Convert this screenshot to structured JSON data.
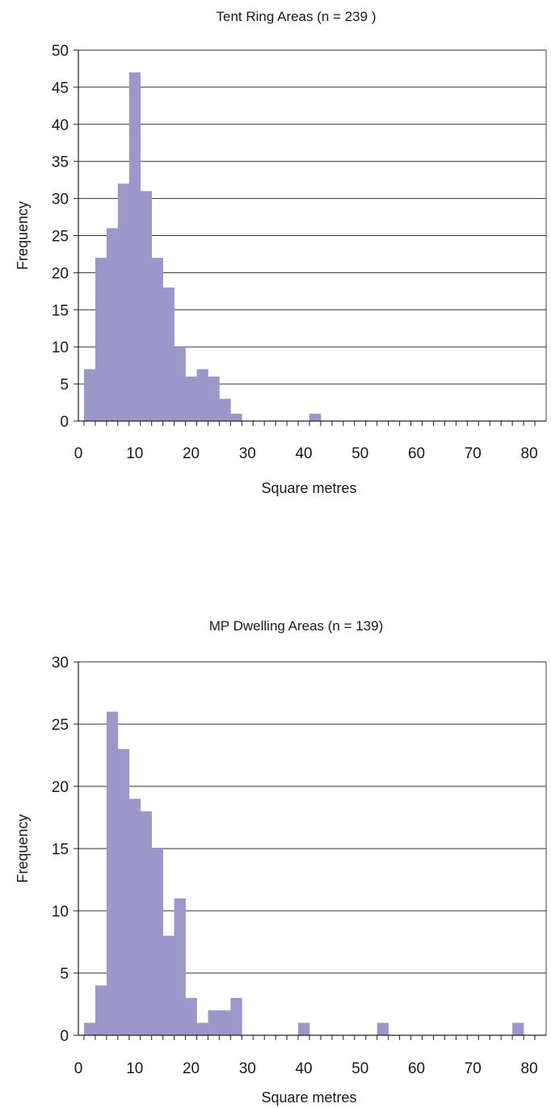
{
  "chart_data": [
    {
      "type": "bar",
      "title": "Tent Ring Areas (n = 239 )",
      "xlabel": "Square metres",
      "ylabel": "Frequency",
      "bin_width": 2,
      "bin_start": 1,
      "values": [
        7,
        22,
        26,
        32,
        47,
        31,
        22,
        18,
        10,
        6,
        7,
        6,
        3,
        1,
        0,
        0,
        0,
        0,
        0,
        0,
        1,
        0,
        0,
        0,
        0,
        0,
        0,
        0,
        0,
        0,
        0,
        0,
        0,
        0,
        0,
        0,
        0,
        0,
        0,
        0
      ],
      "xlim": [
        0,
        83
      ],
      "ylim": [
        0,
        50
      ],
      "x_ticks": [
        0,
        10,
        20,
        30,
        40,
        50,
        60,
        70,
        80
      ],
      "y_ticks": [
        0,
        5,
        10,
        15,
        20,
        25,
        30,
        35,
        40,
        45,
        50
      ],
      "color": "#9b97c9",
      "grid": true
    },
    {
      "type": "bar",
      "title": "MP Dwelling Areas (n = 139)",
      "xlabel": "Square metres",
      "ylabel": "Frequency",
      "bin_width": 2,
      "bin_start": 1,
      "values": [
        1,
        4,
        26,
        23,
        19,
        18,
        15,
        8,
        11,
        3,
        1,
        2,
        2,
        3,
        0,
        0,
        0,
        0,
        0,
        1,
        0,
        0,
        0,
        0,
        0,
        0,
        1,
        0,
        0,
        0,
        0,
        0,
        0,
        0,
        0,
        0,
        0,
        0,
        1,
        0
      ],
      "xlim": [
        0,
        83
      ],
      "ylim": [
        0,
        30
      ],
      "x_ticks": [
        0,
        10,
        20,
        30,
        40,
        50,
        60,
        70,
        80
      ],
      "y_ticks": [
        0,
        5,
        10,
        15,
        20,
        25,
        30
      ],
      "color": "#9b97c9",
      "grid": true
    }
  ]
}
